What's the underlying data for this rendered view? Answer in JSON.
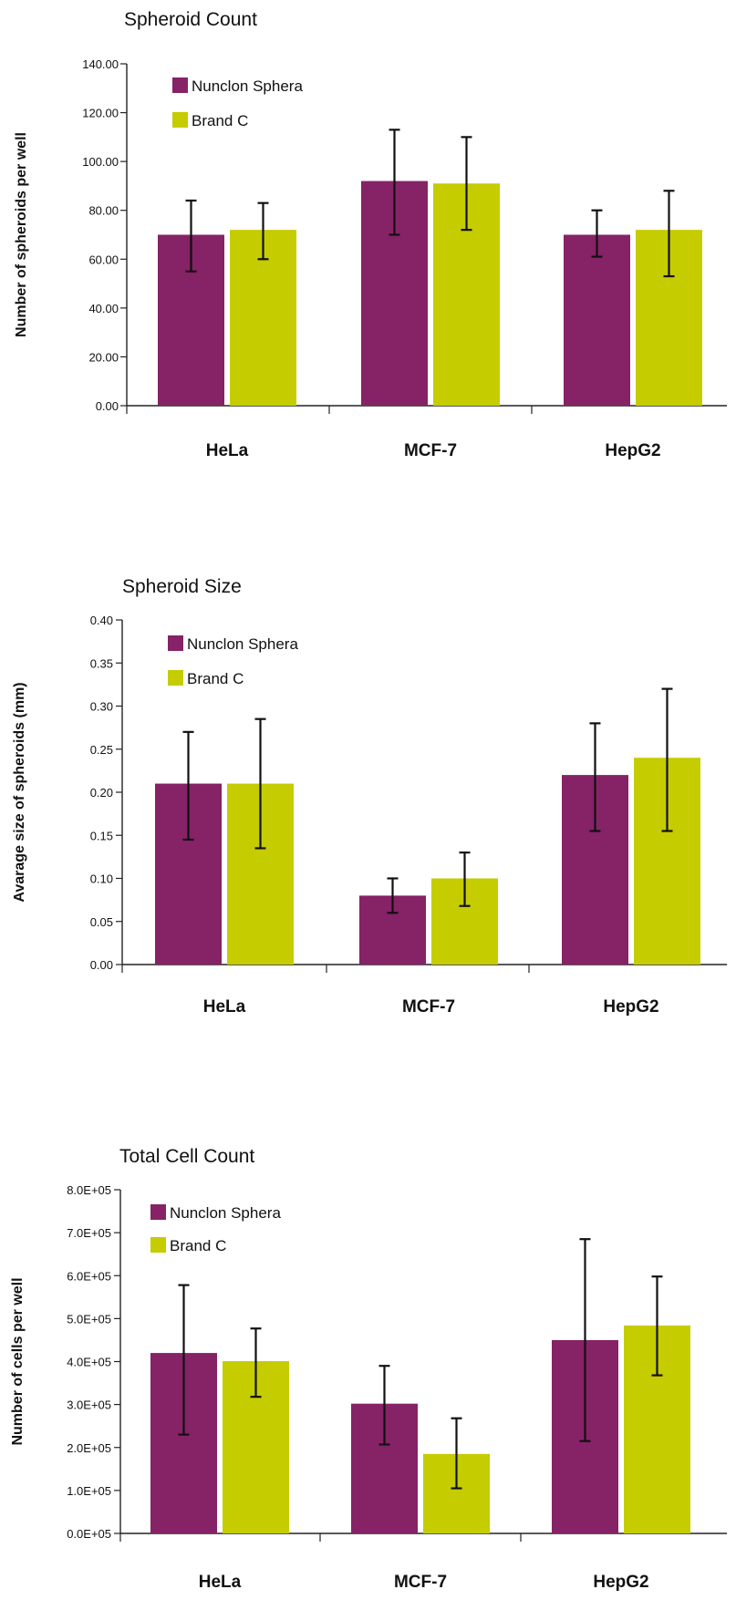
{
  "colors": {
    "nunclon": "#862266",
    "brandc": "#c5cc00",
    "axis": "#222222",
    "error": "#111111"
  },
  "chart_data": [
    {
      "type": "bar",
      "title": "Spheroid Count",
      "ylabel": "Number of spheroids per well",
      "xlabel": "",
      "categories": [
        "HeLa",
        "MCF-7",
        "HepG2"
      ],
      "ylim": [
        0,
        140
      ],
      "yticks": [
        0,
        20,
        40,
        60,
        80,
        100,
        120,
        140
      ],
      "ytick_labels": [
        "0.00",
        "20.00",
        "40.00",
        "60.00",
        "80.00",
        "100.00",
        "120.00",
        "140.00"
      ],
      "legend_position": "top-left",
      "series": [
        {
          "name": "Nunclon Sphera",
          "values": [
            70,
            92,
            70
          ],
          "err_low": [
            55,
            70,
            61
          ],
          "err_high": [
            84,
            113,
            80
          ]
        },
        {
          "name": "Brand C",
          "values": [
            72,
            91,
            72
          ],
          "err_low": [
            60,
            72,
            53
          ],
          "err_high": [
            83,
            110,
            88
          ]
        }
      ]
    },
    {
      "type": "bar",
      "title": "Spheroid Size",
      "ylabel": "Avarage size of spheroids (mm)",
      "xlabel": "",
      "categories": [
        "HeLa",
        "MCF-7",
        "HepG2"
      ],
      "ylim": [
        0,
        0.4
      ],
      "yticks": [
        0,
        0.05,
        0.1,
        0.15,
        0.2,
        0.25,
        0.3,
        0.35,
        0.4
      ],
      "ytick_labels": [
        "0.00",
        "0.05",
        "0.10",
        "0.15",
        "0.20",
        "0.25",
        "0.30",
        "0.35",
        "0.40"
      ],
      "legend_position": "top-left",
      "series": [
        {
          "name": "Nunclon Sphera",
          "values": [
            0.21,
            0.08,
            0.22
          ],
          "err_low": [
            0.145,
            0.06,
            0.155
          ],
          "err_high": [
            0.27,
            0.1,
            0.28
          ]
        },
        {
          "name": "Brand C",
          "values": [
            0.21,
            0.1,
            0.24
          ],
          "err_low": [
            0.135,
            0.068,
            0.155
          ],
          "err_high": [
            0.285,
            0.13,
            0.32
          ]
        }
      ]
    },
    {
      "type": "bar",
      "title": "Total Cell Count",
      "ylabel": "Number of cells per well",
      "xlabel": "",
      "categories": [
        "HeLa",
        "MCF-7",
        "HepG2"
      ],
      "ylim": [
        0,
        800000
      ],
      "yticks": [
        0,
        100000,
        200000,
        300000,
        400000,
        500000,
        600000,
        700000,
        800000
      ],
      "ytick_labels": [
        "0.0E+05",
        "1.0E+05",
        "2.0E+05",
        "3.0E+05",
        "4.0E+05",
        "5.0E+05",
        "6.0E+05",
        "7.0E+05",
        "8.0E+05"
      ],
      "legend_position": "top-left",
      "series": [
        {
          "name": "Nunclon Sphera",
          "values": [
            420000,
            302000,
            450000
          ],
          "err_low": [
            230000,
            207000,
            215000
          ],
          "err_high": [
            578000,
            390000,
            685000
          ]
        },
        {
          "name": "Brand C",
          "values": [
            401000,
            185000,
            484000
          ],
          "err_low": [
            318000,
            105000,
            368000
          ],
          "err_high": [
            477000,
            268000,
            598000
          ]
        }
      ]
    }
  ]
}
